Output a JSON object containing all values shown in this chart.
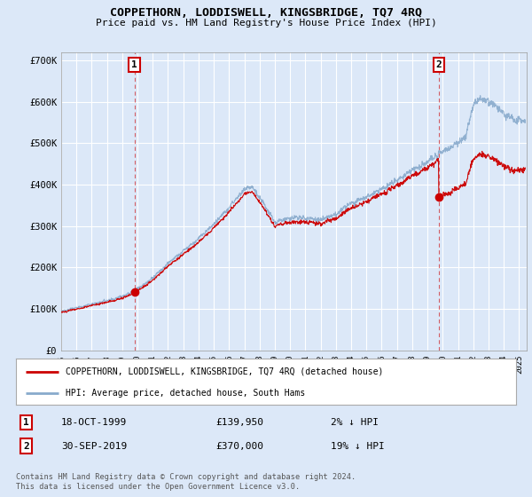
{
  "title": "COPPETHORN, LODDISWELL, KINGSBRIDGE, TQ7 4RQ",
  "subtitle": "Price paid vs. HM Land Registry's House Price Index (HPI)",
  "ylabel_ticks": [
    "£0",
    "£100K",
    "£200K",
    "£300K",
    "£400K",
    "£500K",
    "£600K",
    "£700K"
  ],
  "ytick_values": [
    0,
    100000,
    200000,
    300000,
    400000,
    500000,
    600000,
    700000
  ],
  "ylim": [
    0,
    720000
  ],
  "xlim_start": 1995.0,
  "xlim_end": 2025.5,
  "bg_color": "#dce8f8",
  "plot_bg_color": "#dce8f8",
  "grid_color": "#ffffff",
  "red_color": "#cc0000",
  "blue_color": "#88aacc",
  "marker1_date": 1999.8,
  "marker1_price": 139950,
  "marker2_date": 2019.75,
  "marker2_price": 370000,
  "legend_label_red": "COPPETHORN, LODDISWELL, KINGSBRIDGE, TQ7 4RQ (detached house)",
  "legend_label_blue": "HPI: Average price, detached house, South Hams",
  "annotation1_label": "1",
  "annotation1_date": "18-OCT-1999",
  "annotation1_price": "£139,950",
  "annotation1_hpi": "2% ↓ HPI",
  "annotation2_label": "2",
  "annotation2_date": "30-SEP-2019",
  "annotation2_price": "£370,000",
  "annotation2_hpi": "19% ↓ HPI",
  "footer": "Contains HM Land Registry data © Crown copyright and database right 2024.\nThis data is licensed under the Open Government Licence v3.0.",
  "xtick_years": [
    1995,
    1996,
    1997,
    1998,
    1999,
    2000,
    2001,
    2002,
    2003,
    2004,
    2005,
    2006,
    2007,
    2008,
    2009,
    2010,
    2011,
    2012,
    2013,
    2014,
    2015,
    2016,
    2017,
    2018,
    2019,
    2020,
    2021,
    2022,
    2023,
    2024,
    2025
  ]
}
